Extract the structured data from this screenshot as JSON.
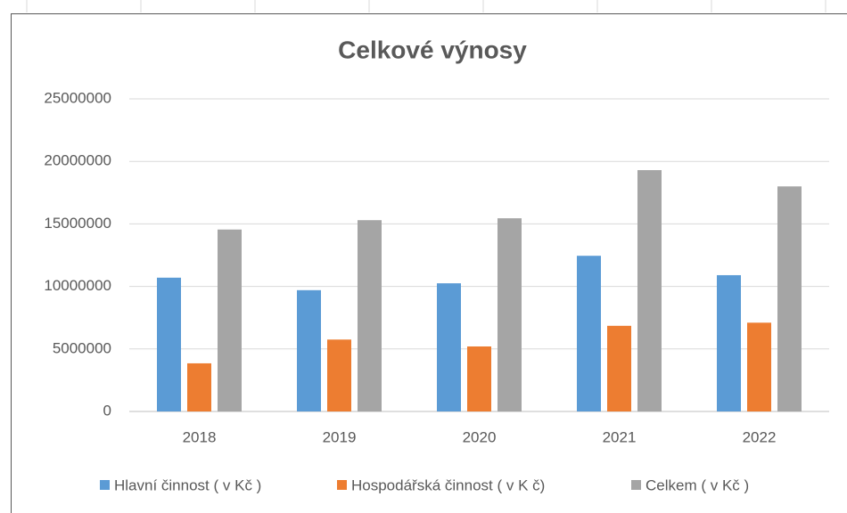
{
  "chart_data": {
    "type": "bar",
    "title": "Celkové výnosy",
    "categories": [
      "2018",
      "2019",
      "2020",
      "2021",
      "2022"
    ],
    "series": [
      {
        "name": "Hlavní činnost ( v Kč )",
        "color": "#5b9bd5",
        "values": [
          10700000,
          9700000,
          10250000,
          12450000,
          10900000
        ]
      },
      {
        "name": "Hospodářská činnost ( v K č)",
        "color": "#ed7d31",
        "values": [
          3850000,
          5750000,
          5200000,
          6850000,
          7100000
        ]
      },
      {
        "name": "Celkem ( v Kč )",
        "color": "#a5a5a5",
        "values": [
          14550000,
          15300000,
          15450000,
          19300000,
          18000000
        ]
      }
    ],
    "ylim": [
      0,
      25000000
    ],
    "yticks": [
      0,
      5000000,
      10000000,
      15000000,
      20000000,
      25000000
    ],
    "grid": true
  }
}
